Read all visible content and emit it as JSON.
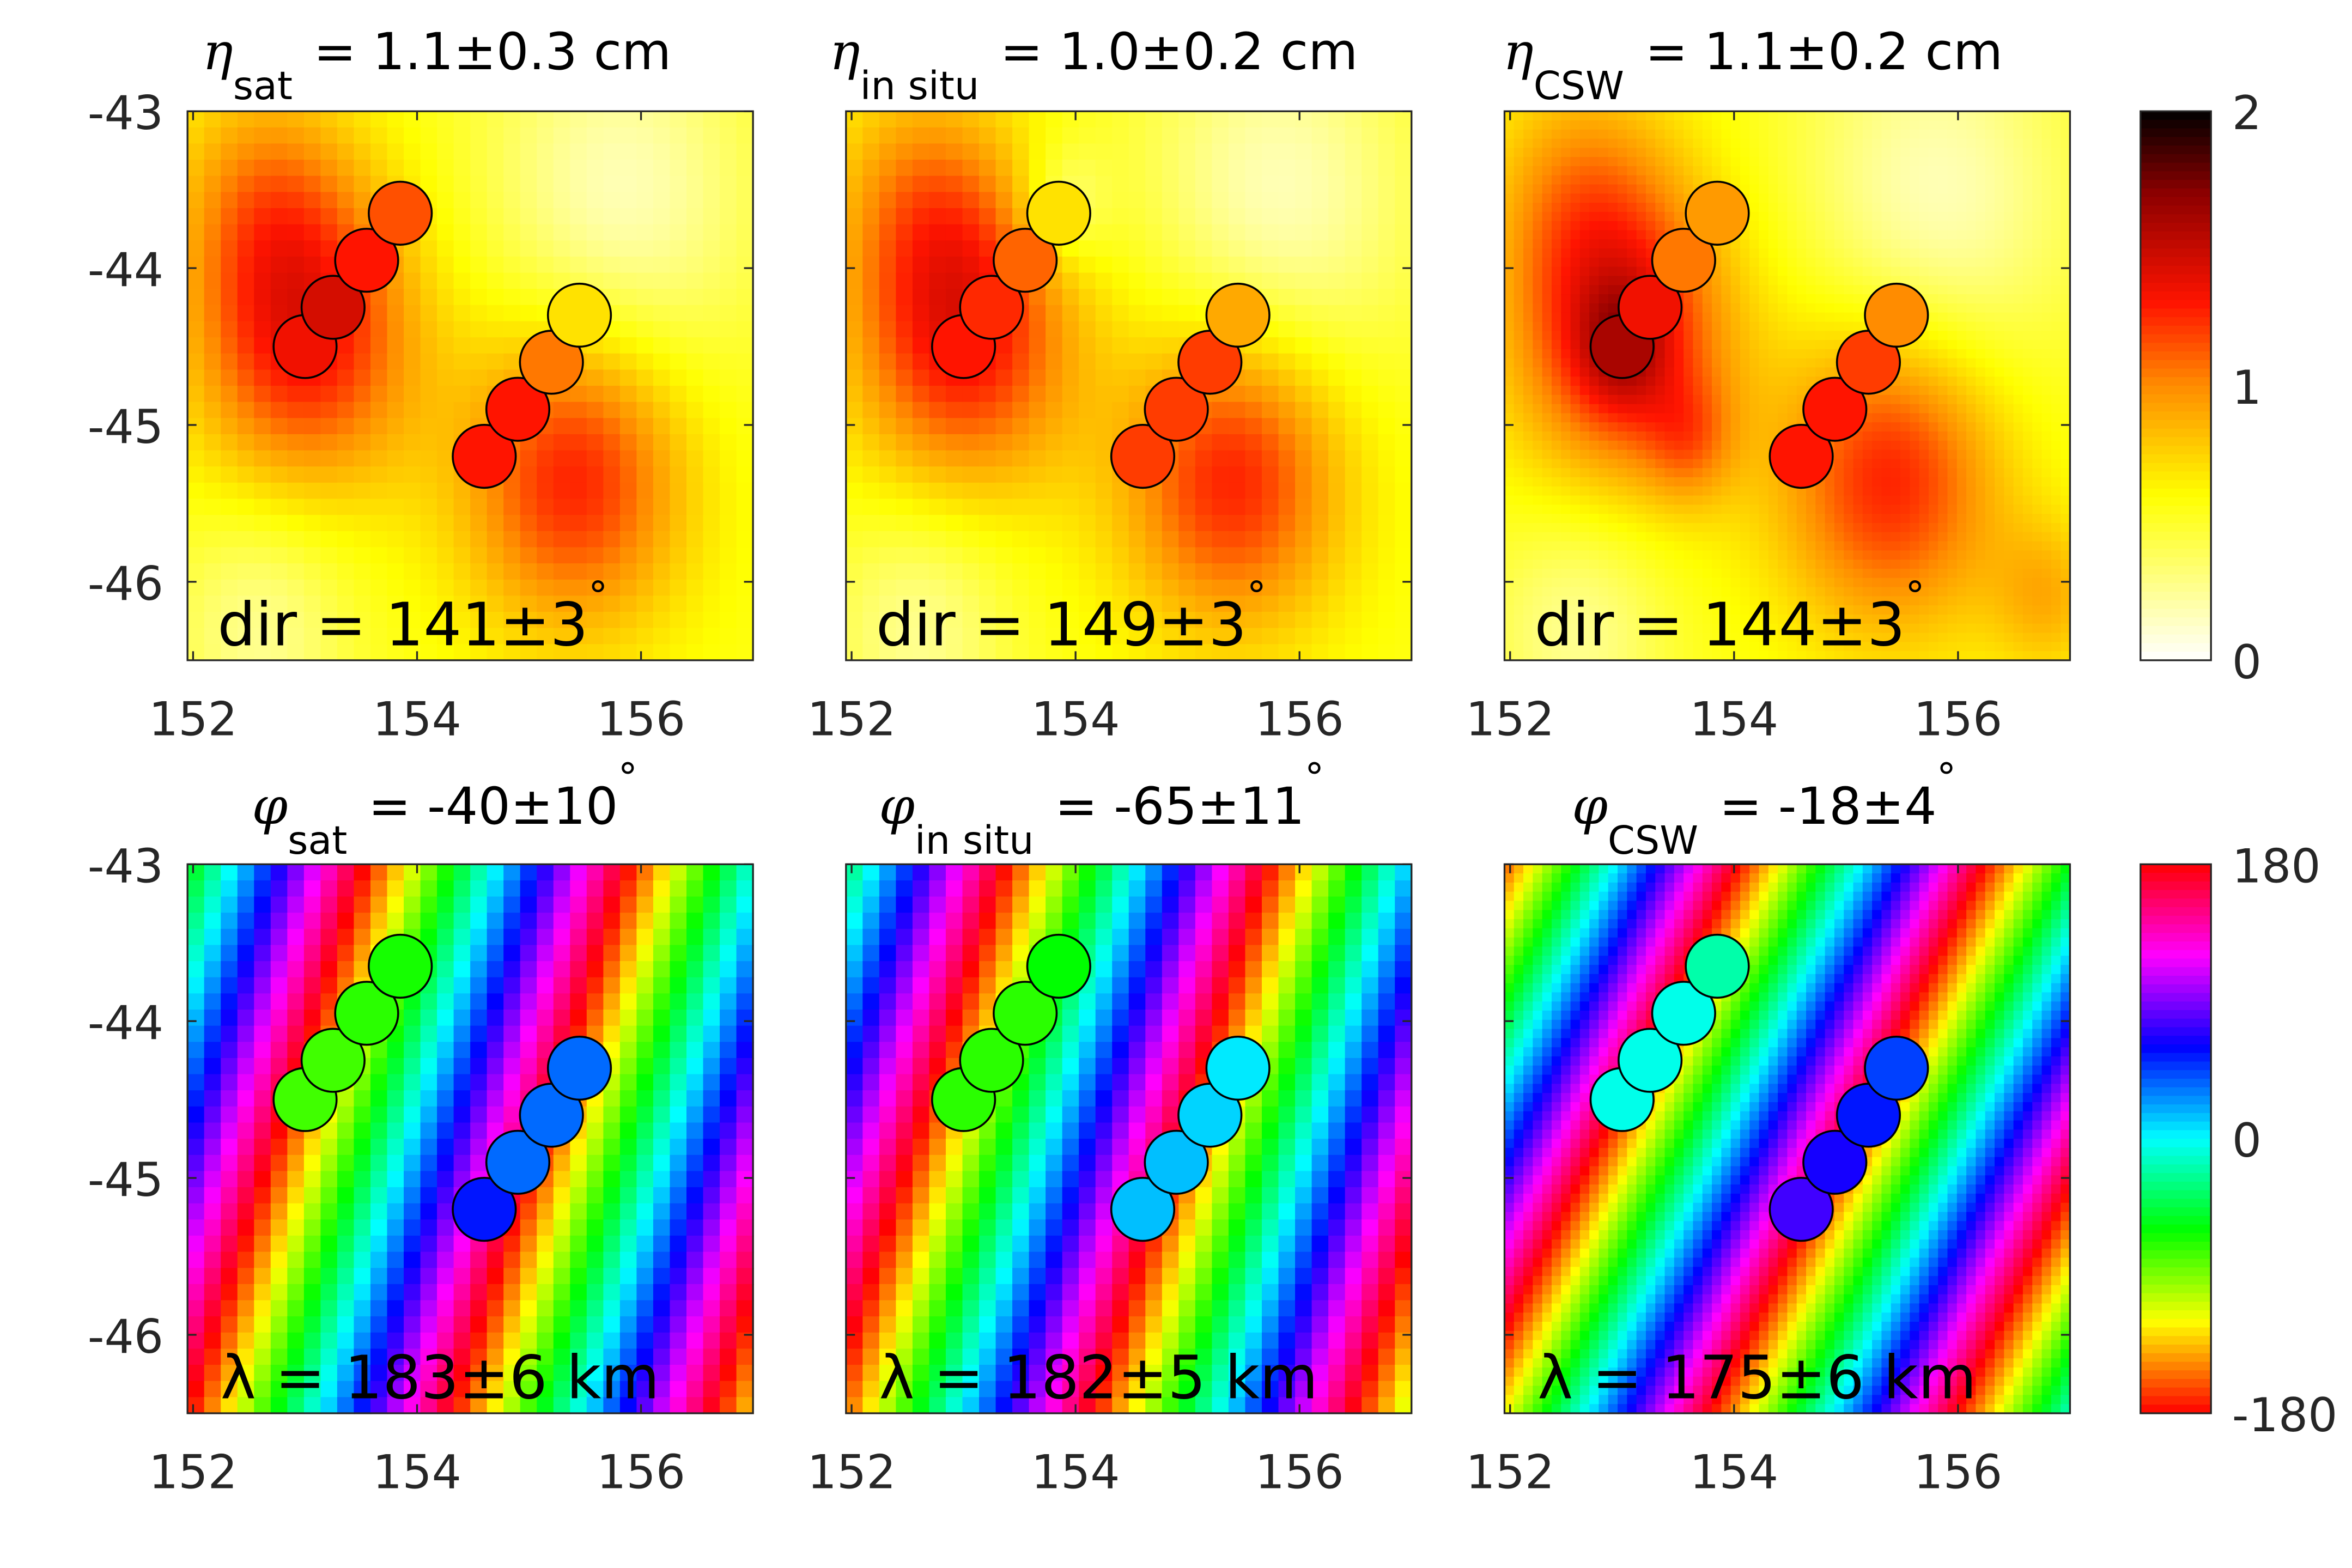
{
  "chart_data": [
    {
      "type": "heatmap",
      "panel": "eta_sat",
      "title": {
        "symbol": "η",
        "subscript": "sat",
        "text": "= 1.1±0.3 cm"
      },
      "annotation": "dir = 141±3",
      "annotation_sup": "°",
      "field": "amplitude",
      "xlim": [
        151.95,
        157.0
      ],
      "ylim": [
        -46.5,
        -43.0
      ],
      "xticks": [
        "152",
        "154",
        "156"
      ],
      "yticks": [
        "-43",
        "-44",
        "-45",
        "-46"
      ],
      "circle_values": [
        1.35,
        1.45,
        1.3,
        1.15,
        1.3,
        1.3,
        1.05,
        0.7
      ]
    },
    {
      "type": "heatmap",
      "panel": "eta_insitu",
      "title": {
        "symbol": "η",
        "subscript": "in situ",
        "text": "= 1.0±0.2 cm"
      },
      "annotation": "dir = 149±3",
      "annotation_sup": "°",
      "field": "amplitude",
      "xlim": [
        151.95,
        157.0
      ],
      "ylim": [
        -46.5,
        -43.0
      ],
      "xticks": [
        "152",
        "154",
        "156"
      ],
      "circle_values": [
        1.3,
        1.25,
        1.1,
        0.7,
        1.2,
        1.2,
        1.2,
        0.9
      ]
    },
    {
      "type": "heatmap",
      "panel": "eta_csw",
      "title": {
        "symbol": "η",
        "subscript": "CSW",
        "text": "= 1.1±0.2 cm"
      },
      "annotation": "dir = 144±3",
      "annotation_sup": "°",
      "field": "amplitude",
      "xlim": [
        151.95,
        157.0
      ],
      "ylim": [
        -46.5,
        -43.0
      ],
      "xticks": [
        "152",
        "154",
        "156"
      ],
      "circle_values": [
        1.6,
        1.35,
        1.05,
        0.95,
        1.3,
        1.3,
        1.2,
        1.0
      ]
    },
    {
      "type": "heatmap",
      "panel": "phi_sat",
      "title": {
        "symbol": "φ",
        "subscript": "sat",
        "text": "= -40±10",
        "sup": "°"
      },
      "annotation": "λ = 183±6 km",
      "field": "phase",
      "xlim": [
        151.95,
        157.0
      ],
      "ylim": [
        -46.5,
        -43.0
      ],
      "xticks": [
        "152",
        "154",
        "156"
      ],
      "yticks": [
        "-43",
        "-44",
        "-45",
        "-46"
      ],
      "circle_values": [
        -75,
        -75,
        -70,
        -65,
        55,
        35,
        35,
        35
      ]
    },
    {
      "type": "heatmap",
      "panel": "phi_insitu",
      "title": {
        "symbol": "φ",
        "subscript": "in situ",
        "text": "= -65±11",
        "sup": "°"
      },
      "annotation": "λ = 182±5 km",
      "field": "phase",
      "xlim": [
        151.95,
        157.0
      ],
      "ylim": [
        -46.5,
        -43.0
      ],
      "xticks": [
        "152",
        "154",
        "156"
      ],
      "circle_values": [
        -70,
        -70,
        -70,
        -60,
        15,
        15,
        10,
        5
      ]
    },
    {
      "type": "heatmap",
      "panel": "phi_csw",
      "title": {
        "symbol": "φ",
        "subscript": "CSW",
        "text": "= -18±4",
        "sup": "°"
      },
      "annotation": "λ = 175±6 km",
      "field": "phase",
      "xlim": [
        151.95,
        157.0
      ],
      "ylim": [
        -46.5,
        -43.0
      ],
      "xticks": [
        "152",
        "154",
        "156"
      ],
      "circle_values": [
        -5,
        -5,
        -5,
        -20,
        75,
        65,
        55,
        45
      ]
    }
  ],
  "circle_centers": [
    [
      153.0,
      -44.5
    ],
    [
      153.25,
      -44.25
    ],
    [
      153.55,
      -43.95
    ],
    [
      153.85,
      -43.65
    ],
    [
      154.6,
      -45.2
    ],
    [
      154.9,
      -44.9
    ],
    [
      155.2,
      -44.6
    ],
    [
      155.45,
      -44.3
    ]
  ],
  "colorbars": [
    {
      "colormap": "hot-reversed",
      "range": [
        0,
        2
      ],
      "ticks": [
        "2",
        "1",
        "0"
      ],
      "colors": [
        "#ffffff",
        "#ffff00",
        "#ff8000",
        "#ff1000",
        "#800000",
        "#000000"
      ]
    },
    {
      "colormap": "hsv",
      "range": [
        -180,
        180
      ],
      "ticks": [
        "180",
        "0",
        "-180"
      ]
    }
  ]
}
